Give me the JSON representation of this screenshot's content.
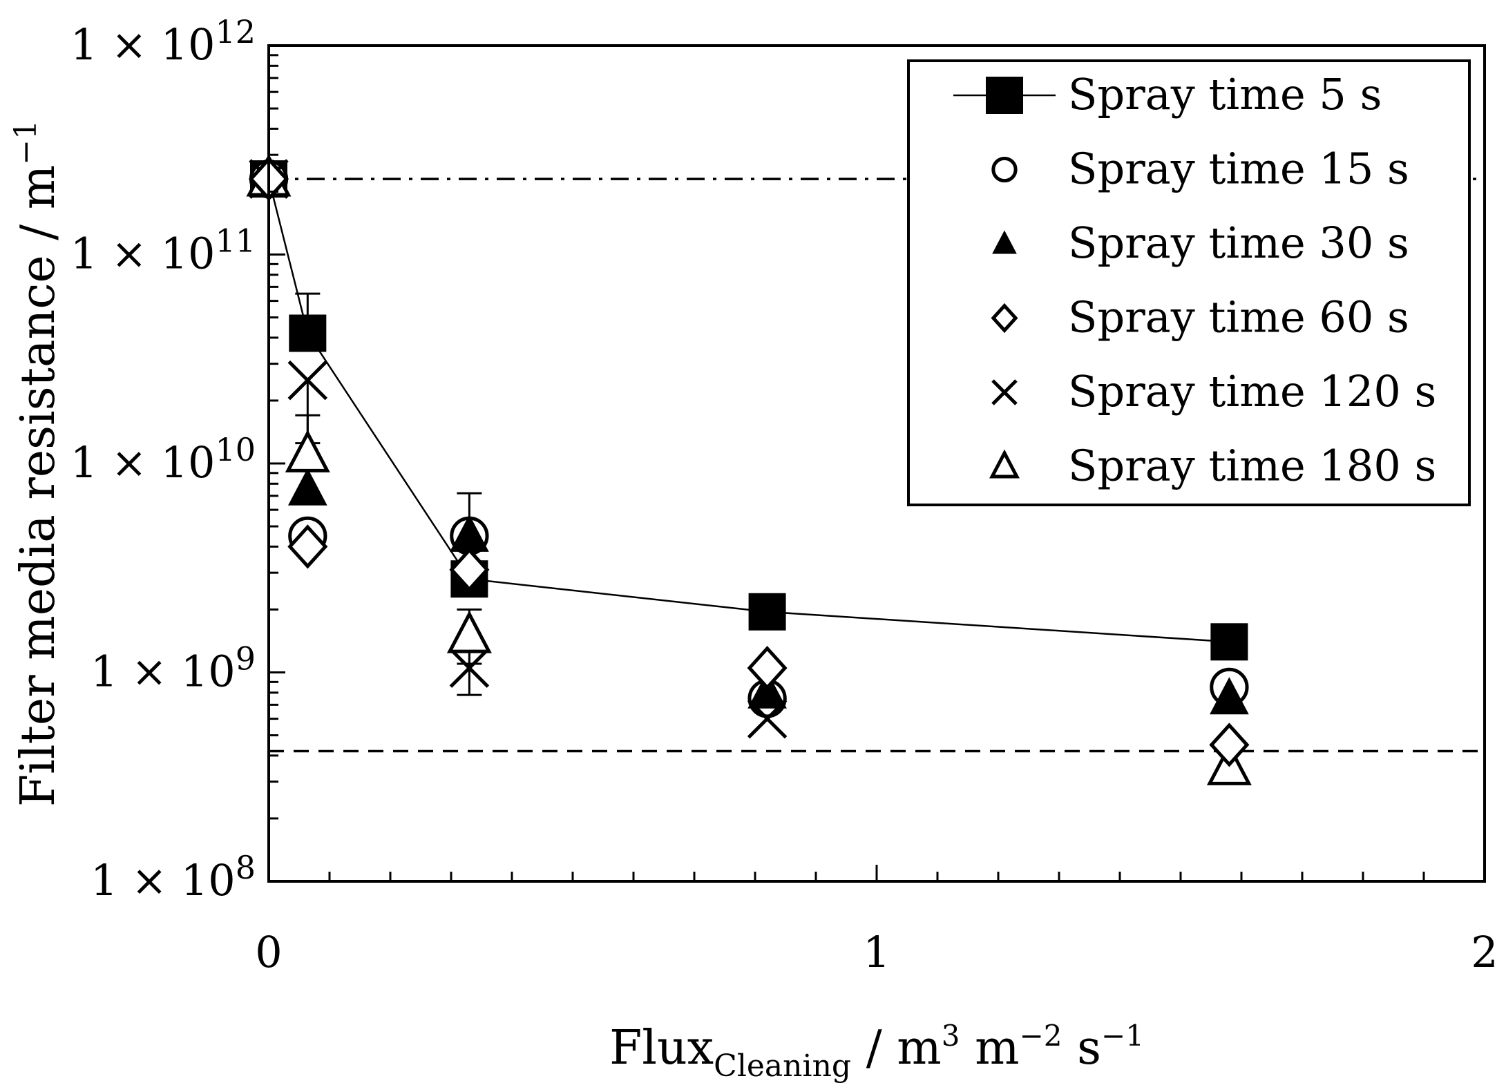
{
  "chart_data": {
    "type": "scatter",
    "xlabel": {
      "main": "Flux",
      "sub": "Cleaning",
      "units": [
        {
          "text": " / m",
          "sup": "3"
        },
        {
          "text": " m",
          "sup": "−2"
        },
        {
          "text": " s",
          "sup": "−1"
        }
      ]
    },
    "ylabel": {
      "main": "Filter media resistance / m",
      "sup": "−1"
    },
    "xlim": [
      0,
      2
    ],
    "ylim": [
      100000000.0,
      1000000000000.0
    ],
    "yscale": "log",
    "grid": false,
    "legend_position": "top-right",
    "x_ticks": [
      {
        "value": 0,
        "label": "0"
      },
      {
        "value": 1,
        "label": "1"
      },
      {
        "value": 2,
        "label": "2"
      }
    ],
    "y_ticks": [
      {
        "value": 100000000.0,
        "mantissa": "1 × 10",
        "exponent": "8"
      },
      {
        "value": 1000000000.0,
        "mantissa": "1 × 10",
        "exponent": "9"
      },
      {
        "value": 10000000000.0,
        "mantissa": "1 × 10",
        "exponent": "10"
      },
      {
        "value": 100000000000.0,
        "mantissa": "1 × 10",
        "exponent": "11"
      },
      {
        "value": 1000000000000.0,
        "mantissa": "1 × 10",
        "exponent": "12"
      }
    ],
    "reference_lines": [
      {
        "style": "dash-dot",
        "y": 230000000000.0
      },
      {
        "style": "dashed",
        "y": 420000000.0
      }
    ],
    "series": [
      {
        "name": "Spray time 5 s",
        "marker": "square-filled",
        "line": true,
        "x": [
          0,
          0.064,
          0.33,
          0.82,
          1.58
        ],
        "y": [
          230000000000.0,
          42000000000.0,
          2800000000.0,
          1950000000.0,
          1400000000.0
        ],
        "err_low": [
          190000000000.0,
          null,
          null,
          null,
          null
        ],
        "err_high": [
          270000000000.0,
          65000000000.0,
          null,
          null,
          null
        ]
      },
      {
        "name": "Spray time 15 s",
        "marker": "circle-open",
        "line": false,
        "x": [
          0,
          0.064,
          0.33,
          0.82,
          1.58
        ],
        "y": [
          230000000000.0,
          4500000000.0,
          4500000000.0,
          750000000.0,
          850000000.0
        ]
      },
      {
        "name": "Spray time 30 s",
        "marker": "triangle-filled",
        "line": false,
        "x": [
          0,
          0.064,
          0.33,
          0.82,
          1.58
        ],
        "y": [
          230000000000.0,
          7500000000.0,
          4500000000.0,
          800000000.0,
          750000000.0
        ],
        "err_low": [
          null,
          null,
          3200000000.0,
          null,
          null
        ],
        "err_high": [
          null,
          null,
          7200000000.0,
          null,
          null
        ]
      },
      {
        "name": "Spray time 60 s",
        "marker": "diamond-open",
        "line": false,
        "x": [
          0,
          0.064,
          0.33,
          0.82,
          1.58
        ],
        "y": [
          230000000000.0,
          4000000000.0,
          3100000000.0,
          1050000000.0,
          450000000.0
        ]
      },
      {
        "name": "Spray time 120 s",
        "marker": "x",
        "line": false,
        "x": [
          0,
          0.064,
          0.33,
          0.82,
          1.58
        ],
        "y": [
          230000000000.0,
          25000000000.0,
          1050000000.0,
          600000000.0,
          null
        ],
        "err_low": [
          null,
          12500000000.0,
          780000000.0,
          null,
          null
        ],
        "err_high": [
          null,
          null,
          1450000000.0,
          null,
          null
        ]
      },
      {
        "name": "Spray time 180 s",
        "marker": "triangle-open",
        "line": false,
        "x": [
          0,
          0.064,
          0.33,
          0.82,
          1.58
        ],
        "y": [
          230000000000.0,
          11000000000.0,
          1500000000.0,
          null,
          350000000.0
        ],
        "err_low": [
          null,
          null,
          1100000000.0,
          null,
          null
        ],
        "err_high": [
          null,
          17000000000.0,
          2000000000.0,
          null,
          null
        ]
      }
    ]
  }
}
